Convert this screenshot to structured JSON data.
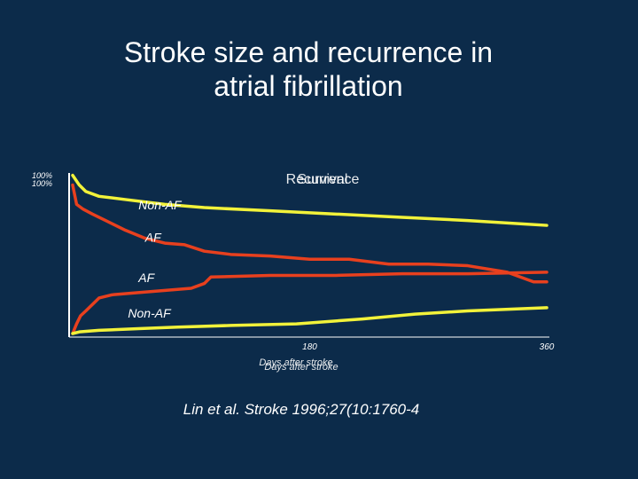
{
  "slide": {
    "title_line1": "Stroke size and recurrence in",
    "title_line2": "atrial fibrillation",
    "citation": "Lin et al. Stroke 1996;27(10:1760-4"
  },
  "colors": {
    "background": "#0c2b4a",
    "yellow": "#f2f23a",
    "red": "#e8401e",
    "white": "#ffffff"
  },
  "chart_data": {
    "type": "line",
    "panel_labels": [
      "Survival",
      "Recurrence"
    ],
    "y_tick_labels": [
      "100%",
      "100%"
    ],
    "xlabel_overlap": [
      "Days after stroke",
      "Days after stroke"
    ],
    "x_ticks": [
      180,
      360
    ],
    "xlim": [
      0,
      360
    ],
    "ylim": [
      0,
      100
    ],
    "grid": false,
    "series": [
      {
        "name": "Non-AF",
        "color": "#f2f23a",
        "x": [
          0,
          5,
          10,
          20,
          40,
          70,
          100,
          150,
          200,
          250,
          300,
          360
        ],
        "y": [
          98,
          92,
          88,
          85,
          83,
          80,
          78,
          76,
          74,
          72,
          70,
          67
        ]
      },
      {
        "name": "AF",
        "color": "#e8401e",
        "x": [
          0,
          3,
          8,
          15,
          25,
          40,
          55,
          70,
          85,
          100,
          120,
          150,
          180,
          210,
          240,
          270,
          300,
          330,
          350,
          360
        ],
        "y": [
          92,
          80,
          77,
          74,
          70,
          64,
          59,
          56,
          55,
          51,
          49,
          48,
          46,
          46,
          43,
          43,
          42,
          38,
          32,
          32
        ]
      },
      {
        "name": "AF",
        "color": "#e8401e",
        "x": [
          0,
          3,
          6,
          10,
          15,
          20,
          30,
          60,
          90,
          100,
          105,
          150,
          200,
          250,
          300,
          360
        ],
        "y": [
          0,
          6,
          11,
          14,
          18,
          22,
          24,
          26,
          28,
          31,
          35,
          36,
          36,
          37,
          37,
          38
        ]
      },
      {
        "name": "Non-AF",
        "color": "#f2f23a",
        "x": [
          0,
          5,
          20,
          50,
          80,
          120,
          170,
          220,
          260,
          300,
          360
        ],
        "y": [
          0,
          1,
          2,
          3,
          4,
          5,
          6,
          9,
          12,
          14,
          16
        ]
      }
    ],
    "series_label_positions": [
      {
        "x_data": 50,
        "y_data": 77
      },
      {
        "x_data": 55,
        "y_data": 57
      },
      {
        "x_data": 50,
        "y_data": 32
      },
      {
        "x_data": 42,
        "y_data": 10
      }
    ]
  }
}
